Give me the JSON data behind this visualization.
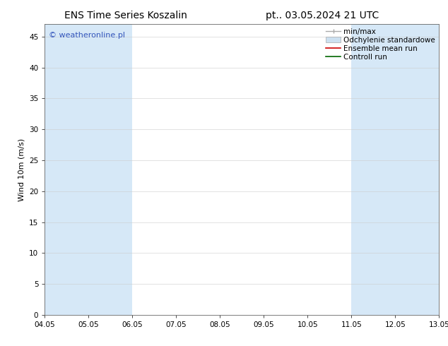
{
  "title_left": "ENS Time Series Koszalin",
  "title_right": "pt.. 03.05.2024 21 UTC",
  "ylabel": "Wind 10m (m/s)",
  "ylim": [
    0,
    47
  ],
  "yticks": [
    0,
    5,
    10,
    15,
    20,
    25,
    30,
    35,
    40,
    45
  ],
  "xlim_start": 0.0,
  "xlim_end": 9.0,
  "xtick_positions": [
    0,
    1,
    2,
    3,
    4,
    5,
    6,
    7,
    8,
    9
  ],
  "xtick_labels": [
    "04.05",
    "05.05",
    "06.05",
    "07.05",
    "08.05",
    "09.05",
    "10.05",
    "11.05",
    "12.05",
    "13.05"
  ],
  "bg_color": "#ffffff",
  "plot_bg_color": "#ffffff",
  "band_color": "#d6e8f7",
  "bands": [
    [
      0.0,
      1.0
    ],
    [
      1.0,
      2.0
    ],
    [
      7.0,
      8.0
    ],
    [
      8.0,
      9.0
    ]
  ],
  "legend_labels": [
    "min/max",
    "Odchylenie standardowe",
    "Ensemble mean run",
    "Controll run"
  ],
  "legend_minmax_color": "#aaaaaa",
  "legend_std_color": "#cce0f0",
  "legend_mean_color": "#cc0000",
  "legend_control_color": "#006600",
  "watermark": "© weatheronline.pl",
  "watermark_color": "#3355bb",
  "title_fontsize": 10,
  "axis_label_fontsize": 8,
  "tick_fontsize": 7.5,
  "legend_fontsize": 7.5
}
